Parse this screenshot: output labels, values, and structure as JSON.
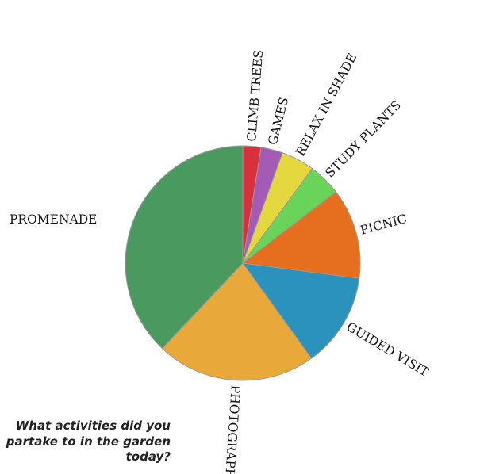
{
  "chart_data": {
    "type": "pie",
    "title": "",
    "caption": "What activities did you partake to in the garden today?",
    "slices": [
      {
        "label": "CLIMB TREES",
        "value": 2.5,
        "color": "#d8303c"
      },
      {
        "label": "GAMES",
        "value": 3.0,
        "color": "#a35bb5"
      },
      {
        "label": "RELAX IN SHADE",
        "value": 4.6,
        "color": "#e5d83e"
      },
      {
        "label": "STUDY PLANTS",
        "value": 4.5,
        "color": "#6ad35a"
      },
      {
        "label": "PICNIC",
        "value": 12.5,
        "color": "#e56f1f"
      },
      {
        "label": "GUIDED VISIT",
        "value": 13.0,
        "color": "#2b91bd"
      },
      {
        "label": "PHOTOGRAPHY",
        "value": 22.0,
        "color": "#e8a93a"
      },
      {
        "label": "PROMENADE",
        "value": 38.0,
        "color": "#4a9a60"
      }
    ],
    "legend": "none",
    "start": "top, clockwise"
  }
}
